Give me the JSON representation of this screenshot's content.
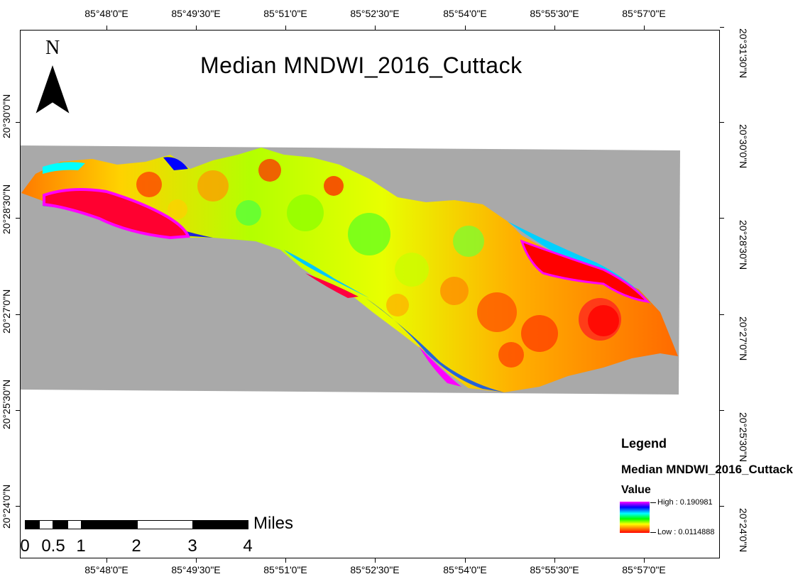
{
  "title": "Median MNDWI_2016_Cuttack",
  "north_arrow": {
    "letter": "N"
  },
  "graticule": {
    "longitude_labels": [
      "85°48'0\"E",
      "85°49'30\"E",
      "85°51'0\"E",
      "85°52'30\"E",
      "85°54'0\"E",
      "85°55'30\"E",
      "85°57'0\"E"
    ],
    "latitude_labels": [
      "20°31'30\"N",
      "20°30'0\"N",
      "20°28'30\"N",
      "20°27'0\"N",
      "20°25'30\"N",
      "20°24'0\"N"
    ]
  },
  "legend": {
    "heading": "Legend",
    "layer_name": "Median MNDWI_2016_Cuttack",
    "field": "Value",
    "high_label": "High : 0.190981",
    "low_label": "Low : 0.0114888",
    "ramp_colors": [
      "#ff00ff",
      "#0000ff",
      "#00ffff",
      "#00ff00",
      "#ffff00",
      "#ff8000",
      "#ff0000"
    ]
  },
  "scale_bar": {
    "unit": "Miles",
    "labels": [
      "0",
      "0.5",
      "1",
      "2",
      "3",
      "4"
    ]
  },
  "colors": {
    "nodata": "#a9a9a9",
    "water": "#ff0000",
    "water_edge": "#ff00ff"
  }
}
